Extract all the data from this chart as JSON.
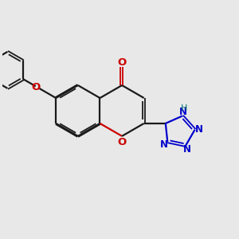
{
  "background_color": "#e8e8e8",
  "bond_color": "#1a1a1a",
  "oxygen_color": "#cc0000",
  "nitrogen_color": "#0000cc",
  "hydrogen_color": "#007070",
  "figsize": [
    3.0,
    3.0
  ],
  "dpi": 100,
  "xlim": [
    0,
    12
  ],
  "ylim": [
    0,
    12
  ]
}
